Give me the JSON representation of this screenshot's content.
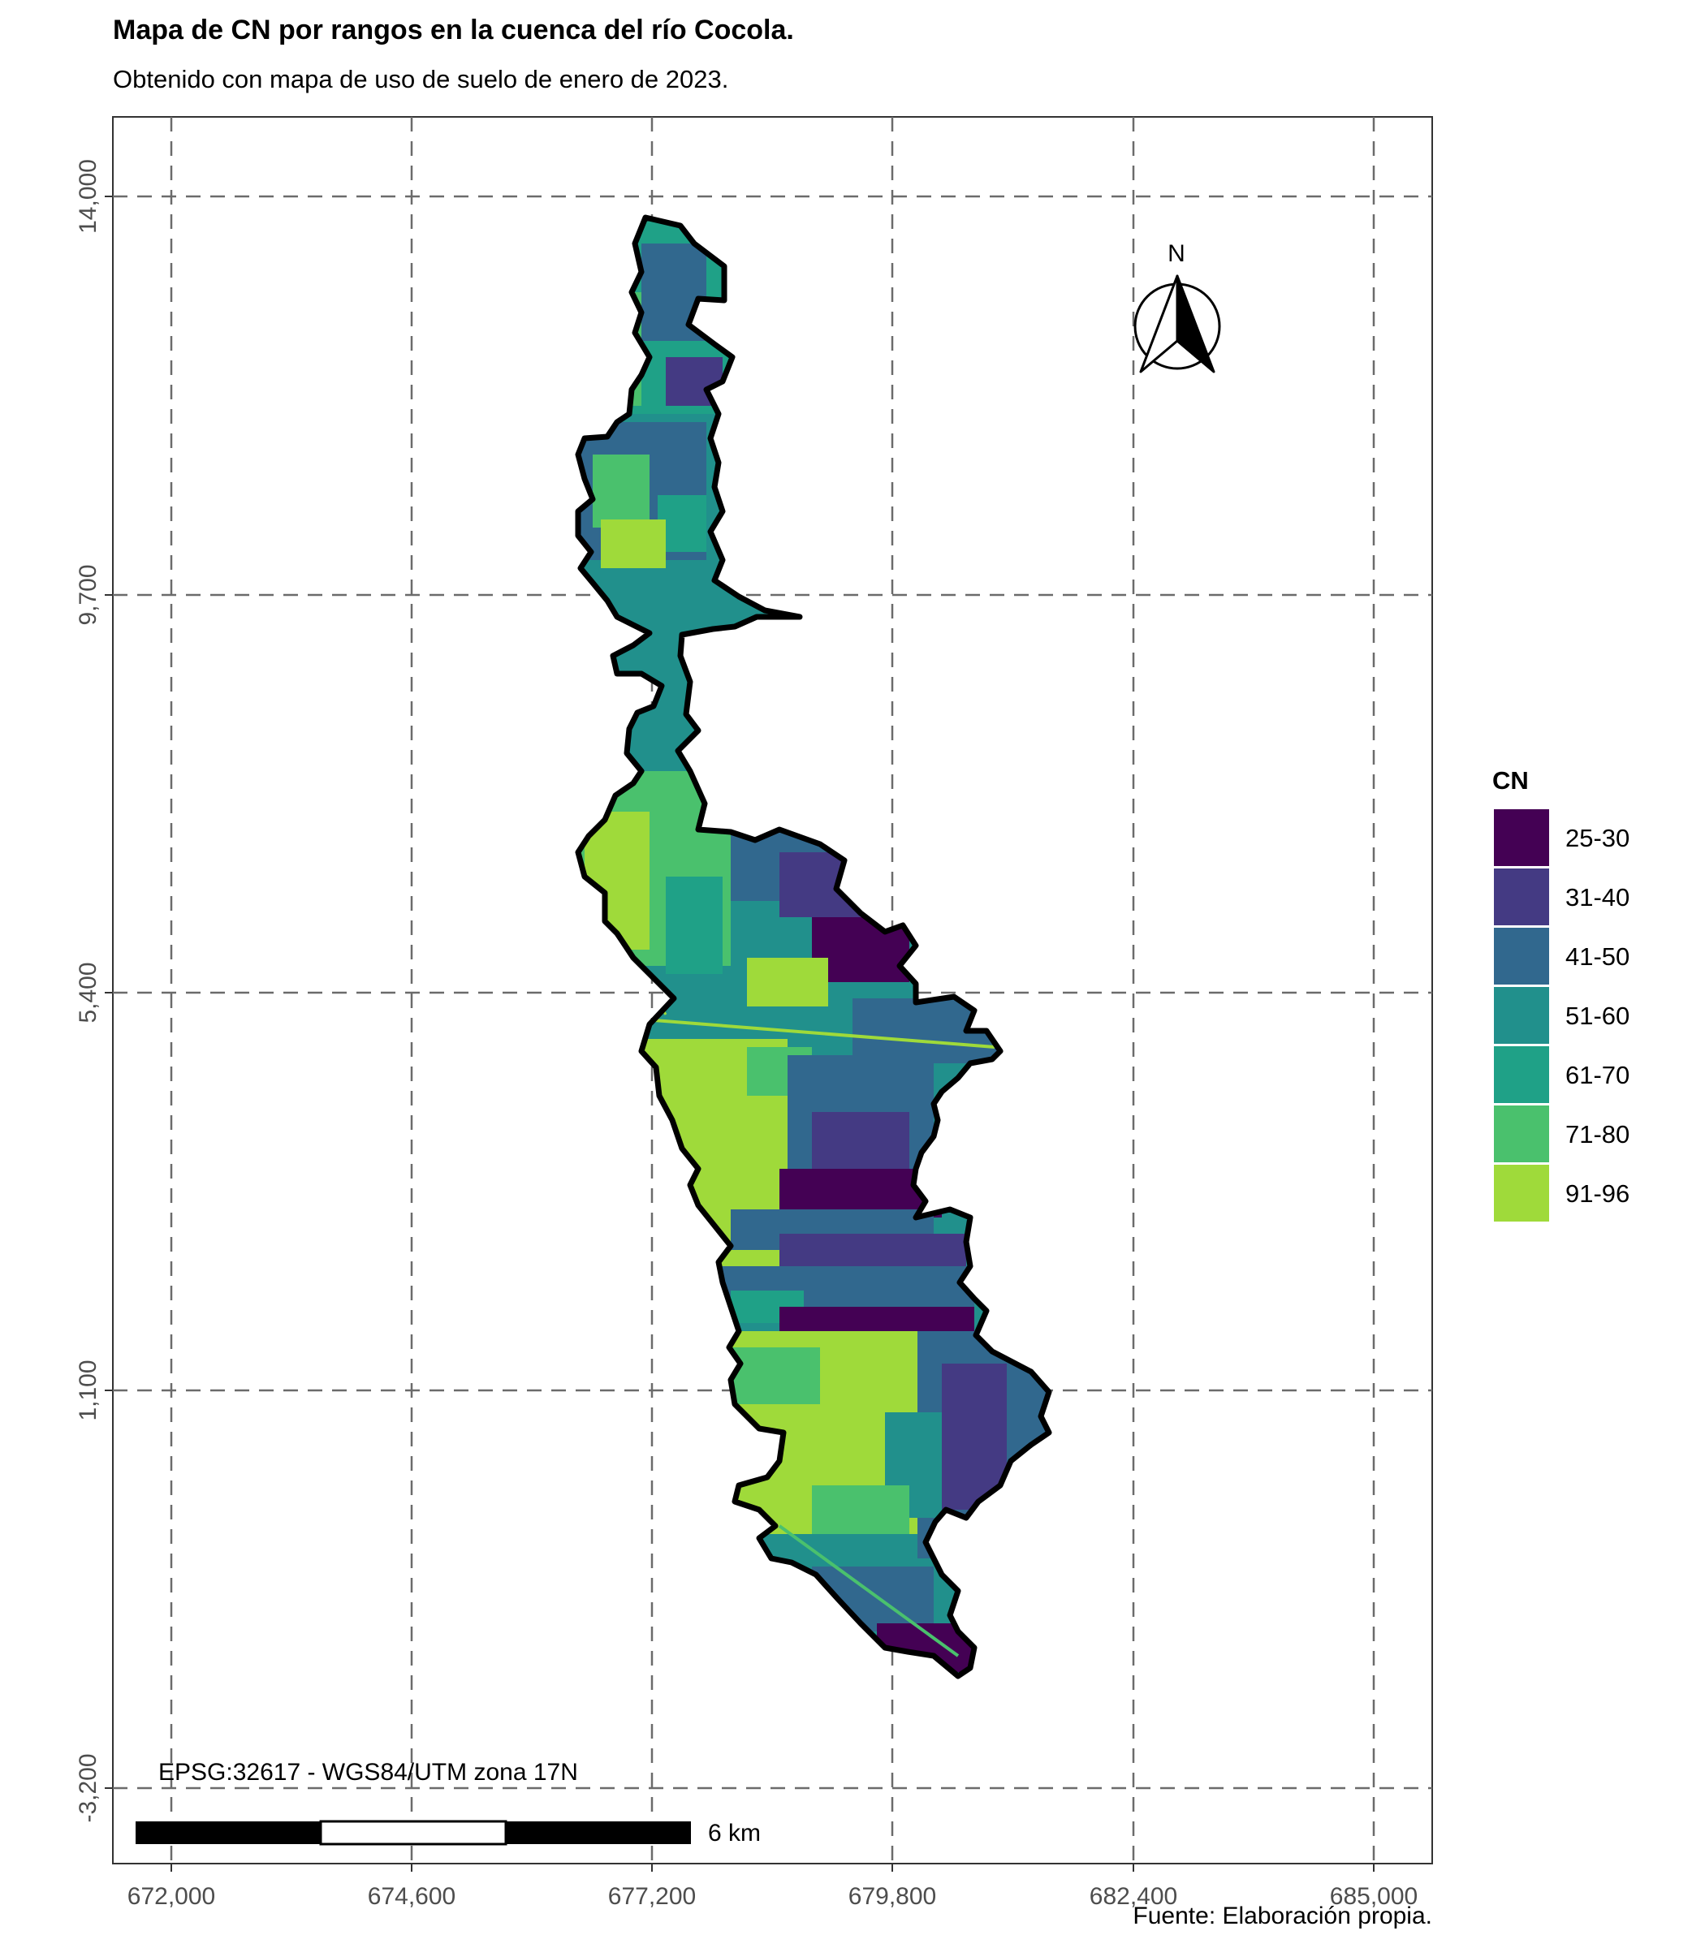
{
  "map": {
    "title": "Mapa de CN por rangos en la cuenca del río Cocola.",
    "subtitle": "Obtenido con mapa de uso de suelo de enero de 2023.",
    "caption": "Fuente: Elaboración propia.",
    "crs_note": "EPSG:32617 - WGS84/UTM zona 17N",
    "scale_bar_label": "6 km",
    "north_label": "N"
  },
  "axes": {
    "x_ticks": [
      "672,000",
      "674,600",
      "677,200",
      "679,800",
      "682,400",
      "685,000"
    ],
    "y_ticks": [
      "14,000",
      "9,700",
      "5,400",
      "1,100",
      "-3,200"
    ],
    "grid": "dashed"
  },
  "legend": {
    "title": "CN",
    "placement": "right",
    "items": [
      {
        "label": "25-30",
        "color": "#440154"
      },
      {
        "label": "31-40",
        "color": "#443A83"
      },
      {
        "label": "41-50",
        "color": "#31688E"
      },
      {
        "label": "51-60",
        "color": "#21908C"
      },
      {
        "label": "61-70",
        "color": "#1FA187"
      },
      {
        "label": "71-80",
        "color": "#4AC16D"
      },
      {
        "label": "91-96",
        "color": "#9FDA3A"
      }
    ]
  }
}
